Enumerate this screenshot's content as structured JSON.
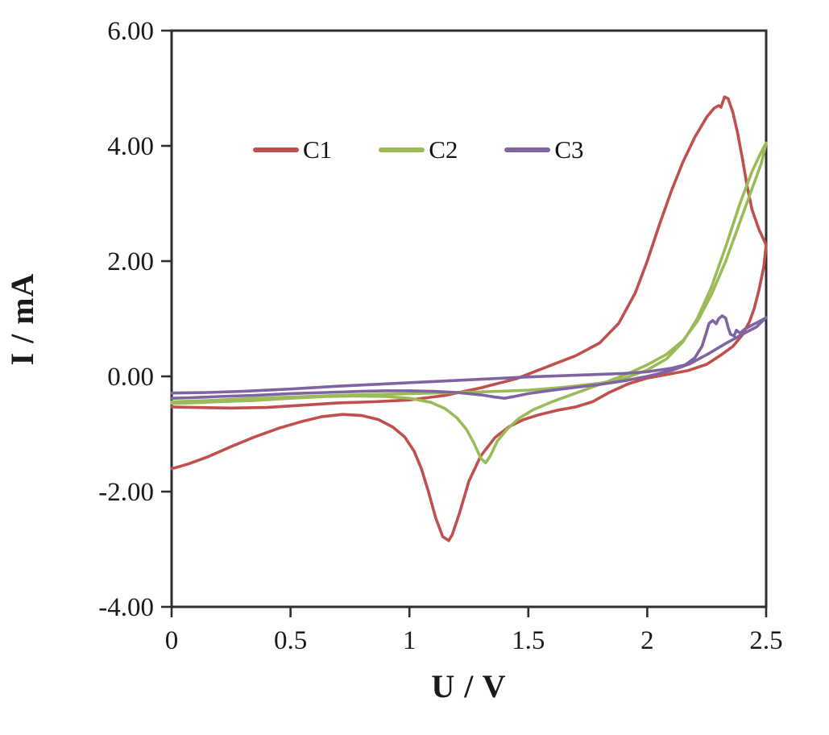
{
  "chart_data": {
    "type": "line",
    "title": "",
    "xlabel": "U / V",
    "ylabel": "I / mA",
    "xlim": [
      0,
      2.5
    ],
    "ylim": [
      -4,
      6
    ],
    "x_ticks": [
      0,
      0.5,
      1,
      1.5,
      2,
      2.5
    ],
    "x_tick_labels": [
      "0",
      "0.5",
      "1",
      "1.5",
      "2",
      "2.5"
    ],
    "y_ticks": [
      -4,
      -2,
      0,
      2,
      4,
      6
    ],
    "y_tick_labels": [
      "-4.00",
      "-2.00",
      "0.00",
      "2.00",
      "4.00",
      "6.00"
    ],
    "grid": false,
    "legend_position": "inside-top-left",
    "plot_border": true,
    "series": [
      {
        "name": "C1",
        "color": "#C0504D",
        "points": [
          [
            0,
            -0.53
          ],
          [
            0.1,
            -0.54
          ],
          [
            0.25,
            -0.55
          ],
          [
            0.4,
            -0.54
          ],
          [
            0.55,
            -0.5
          ],
          [
            0.7,
            -0.46
          ],
          [
            0.85,
            -0.44
          ],
          [
            1.0,
            -0.41
          ],
          [
            1.15,
            -0.33
          ],
          [
            1.3,
            -0.2
          ],
          [
            1.45,
            -0.04
          ],
          [
            1.6,
            0.2
          ],
          [
            1.7,
            0.36
          ],
          [
            1.8,
            0.58
          ],
          [
            1.88,
            0.92
          ],
          [
            1.95,
            1.45
          ],
          [
            2.0,
            2.0
          ],
          [
            2.05,
            2.62
          ],
          [
            2.1,
            3.2
          ],
          [
            2.15,
            3.72
          ],
          [
            2.2,
            4.15
          ],
          [
            2.25,
            4.5
          ],
          [
            2.28,
            4.65
          ],
          [
            2.3,
            4.7
          ],
          [
            2.31,
            4.67
          ],
          [
            2.325,
            4.85
          ],
          [
            2.34,
            4.82
          ],
          [
            2.36,
            4.58
          ],
          [
            2.38,
            4.22
          ],
          [
            2.4,
            3.78
          ],
          [
            2.42,
            3.3
          ],
          [
            2.44,
            2.9
          ],
          [
            2.47,
            2.55
          ],
          [
            2.5,
            2.28
          ],
          [
            2.49,
            1.9
          ],
          [
            2.47,
            1.5
          ],
          [
            2.45,
            1.18
          ],
          [
            2.43,
            0.95
          ],
          [
            2.4,
            0.72
          ],
          [
            2.36,
            0.52
          ],
          [
            2.31,
            0.37
          ],
          [
            2.25,
            0.21
          ],
          [
            2.17,
            0.1
          ],
          [
            2.08,
            0.03
          ],
          [
            2.0,
            -0.03
          ],
          [
            1.92,
            -0.13
          ],
          [
            1.84,
            -0.28
          ],
          [
            1.77,
            -0.44
          ],
          [
            1.7,
            -0.53
          ],
          [
            1.62,
            -0.59
          ],
          [
            1.55,
            -0.66
          ],
          [
            1.48,
            -0.75
          ],
          [
            1.42,
            -0.87
          ],
          [
            1.36,
            -1.06
          ],
          [
            1.3,
            -1.38
          ],
          [
            1.25,
            -1.82
          ],
          [
            1.21,
            -2.38
          ],
          [
            1.18,
            -2.75
          ],
          [
            1.165,
            -2.85
          ],
          [
            1.14,
            -2.78
          ],
          [
            1.11,
            -2.45
          ],
          [
            1.08,
            -2.0
          ],
          [
            1.05,
            -1.6
          ],
          [
            1.02,
            -1.3
          ],
          [
            0.98,
            -1.05
          ],
          [
            0.93,
            -0.88
          ],
          [
            0.87,
            -0.75
          ],
          [
            0.8,
            -0.68
          ],
          [
            0.72,
            -0.66
          ],
          [
            0.63,
            -0.7
          ],
          [
            0.55,
            -0.78
          ],
          [
            0.45,
            -0.9
          ],
          [
            0.35,
            -1.05
          ],
          [
            0.25,
            -1.22
          ],
          [
            0.15,
            -1.4
          ],
          [
            0.07,
            -1.52
          ],
          [
            0.02,
            -1.58
          ],
          [
            0,
            -1.6
          ]
        ]
      },
      {
        "name": "C2",
        "color": "#9BBB59",
        "points": [
          [
            0,
            -0.44
          ],
          [
            0.15,
            -0.42
          ],
          [
            0.3,
            -0.39
          ],
          [
            0.5,
            -0.36
          ],
          [
            0.7,
            -0.33
          ],
          [
            0.9,
            -0.31
          ],
          [
            1.1,
            -0.29
          ],
          [
            1.3,
            -0.27
          ],
          [
            1.5,
            -0.24
          ],
          [
            1.65,
            -0.19
          ],
          [
            1.8,
            -0.12
          ],
          [
            1.9,
            -0.04
          ],
          [
            2.0,
            0.11
          ],
          [
            2.08,
            0.3
          ],
          [
            2.15,
            0.6
          ],
          [
            2.21,
            1.0
          ],
          [
            2.27,
            1.55
          ],
          [
            2.33,
            2.25
          ],
          [
            2.39,
            3.0
          ],
          [
            2.44,
            3.55
          ],
          [
            2.48,
            3.9
          ],
          [
            2.5,
            4.05
          ],
          [
            2.48,
            3.7
          ],
          [
            2.44,
            3.25
          ],
          [
            2.39,
            2.68
          ],
          [
            2.33,
            2.0
          ],
          [
            2.27,
            1.42
          ],
          [
            2.21,
            0.95
          ],
          [
            2.15,
            0.62
          ],
          [
            2.08,
            0.38
          ],
          [
            2.0,
            0.2
          ],
          [
            1.92,
            0.05
          ],
          [
            1.84,
            -0.08
          ],
          [
            1.76,
            -0.2
          ],
          [
            1.68,
            -0.32
          ],
          [
            1.6,
            -0.44
          ],
          [
            1.52,
            -0.58
          ],
          [
            1.46,
            -0.73
          ],
          [
            1.41,
            -0.92
          ],
          [
            1.37,
            -1.12
          ],
          [
            1.34,
            -1.38
          ],
          [
            1.32,
            -1.5
          ],
          [
            1.3,
            -1.42
          ],
          [
            1.27,
            -1.15
          ],
          [
            1.24,
            -0.92
          ],
          [
            1.2,
            -0.72
          ],
          [
            1.15,
            -0.56
          ],
          [
            1.09,
            -0.45
          ],
          [
            1.0,
            -0.38
          ],
          [
            0.9,
            -0.35
          ],
          [
            0.78,
            -0.34
          ],
          [
            0.65,
            -0.35
          ],
          [
            0.5,
            -0.38
          ],
          [
            0.35,
            -0.42
          ],
          [
            0.2,
            -0.44
          ],
          [
            0.08,
            -0.46
          ],
          [
            0,
            -0.47
          ]
        ]
      },
      {
        "name": "C3",
        "color": "#8064A2",
        "points": [
          [
            0,
            -0.29
          ],
          [
            0.15,
            -0.28
          ],
          [
            0.3,
            -0.26
          ],
          [
            0.5,
            -0.22
          ],
          [
            0.7,
            -0.17
          ],
          [
            0.9,
            -0.13
          ],
          [
            1.1,
            -0.09
          ],
          [
            1.3,
            -0.05
          ],
          [
            1.5,
            -0.01
          ],
          [
            1.7,
            0.02
          ],
          [
            1.9,
            0.05
          ],
          [
            2.0,
            0.08
          ],
          [
            2.1,
            0.14
          ],
          [
            2.16,
            0.2
          ],
          [
            2.2,
            0.32
          ],
          [
            2.23,
            0.52
          ],
          [
            2.25,
            0.78
          ],
          [
            2.26,
            0.92
          ],
          [
            2.275,
            0.97
          ],
          [
            2.29,
            0.91
          ],
          [
            2.3,
            1.0
          ],
          [
            2.315,
            1.05
          ],
          [
            2.33,
            1.01
          ],
          [
            2.34,
            0.85
          ],
          [
            2.35,
            0.73
          ],
          [
            2.365,
            0.7
          ],
          [
            2.375,
            0.8
          ],
          [
            2.39,
            0.75
          ],
          [
            2.41,
            0.82
          ],
          [
            2.44,
            0.89
          ],
          [
            2.47,
            0.95
          ],
          [
            2.5,
            1.02
          ],
          [
            2.46,
            0.86
          ],
          [
            2.4,
            0.73
          ],
          [
            2.33,
            0.57
          ],
          [
            2.26,
            0.4
          ],
          [
            2.18,
            0.22
          ],
          [
            2.1,
            0.1
          ],
          [
            2.0,
            0.0
          ],
          [
            1.9,
            -0.08
          ],
          [
            1.8,
            -0.14
          ],
          [
            1.7,
            -0.19
          ],
          [
            1.6,
            -0.24
          ],
          [
            1.5,
            -0.3
          ],
          [
            1.44,
            -0.35
          ],
          [
            1.4,
            -0.38
          ],
          [
            1.36,
            -0.36
          ],
          [
            1.3,
            -0.32
          ],
          [
            1.2,
            -0.28
          ],
          [
            1.1,
            -0.26
          ],
          [
            1.0,
            -0.25
          ],
          [
            0.9,
            -0.25
          ],
          [
            0.8,
            -0.26
          ],
          [
            0.65,
            -0.28
          ],
          [
            0.5,
            -0.3
          ],
          [
            0.35,
            -0.33
          ],
          [
            0.2,
            -0.35
          ],
          [
            0.08,
            -0.37
          ],
          [
            0,
            -0.38
          ]
        ]
      }
    ],
    "style": {
      "curve_width": 3.6,
      "axis_color": "#2e2e2e",
      "tick_label_color": "#1a1a1a",
      "background": "#ffffff"
    }
  },
  "legend": {
    "items": [
      {
        "label": "C1",
        "color": "#C0504D"
      },
      {
        "label": "C2",
        "color": "#9BBB59"
      },
      {
        "label": "C3",
        "color": "#8064A2"
      }
    ]
  },
  "axes": {
    "x_title": "U / V",
    "y_title": "I / mA"
  }
}
